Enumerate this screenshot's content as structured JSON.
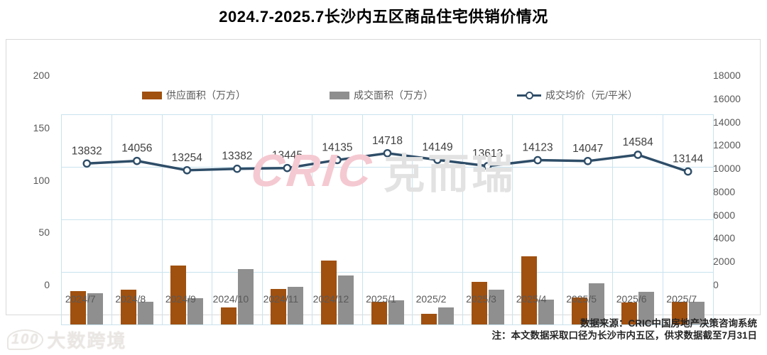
{
  "title": "2024.7-2025.7长沙内五区商品住宅供销价情况",
  "legend": [
    {
      "label": "供应面积（万方）",
      "color": "#a0500f",
      "type": "bar"
    },
    {
      "label": "成交面积（万方）",
      "color": "#8f8f8f",
      "type": "bar"
    },
    {
      "label": "成交均价（元/平米）",
      "color": "#2e4d68",
      "type": "line"
    }
  ],
  "watermark_center": {
    "brand": "CRIC",
    "name": "克而瑞"
  },
  "watermark_corner": {
    "logo": "100",
    "label": "大数跨境"
  },
  "footer": {
    "source": "数据来源：CRIC中国房地产决策咨询系统",
    "note": "注：本文数据采取口径为长沙市内五区，供求数据截至7月31日"
  },
  "colors": {
    "supply_bar": "#a0500f",
    "deal_bar": "#8f8f8f",
    "price_line": "#2e4d68",
    "grid": "#c9e3ee",
    "tick_text": "#595959",
    "value_label": "#404040"
  },
  "chart_data": {
    "type": "bar",
    "subtype": "combo-bar-line-dual-axis",
    "title": "2024.7-2025.7长沙内五区商品住宅供销价情况",
    "categories": [
      "2024/7",
      "2024/8",
      "2024/9",
      "2024/10",
      "2024/11",
      "2024/12",
      "2025/1",
      "2025/2",
      "2025/3",
      "2025/4",
      "2025/5",
      "2025/6",
      "2025/7"
    ],
    "series": [
      {
        "name": "供应面积（万方）",
        "type": "bar",
        "axis": "left",
        "color": "#a0500f",
        "values": [
          32,
          33,
          56,
          16,
          34,
          61,
          22,
          10,
          41,
          65,
          26,
          21,
          22
        ]
      },
      {
        "name": "成交面积（万方）",
        "type": "bar",
        "axis": "left",
        "color": "#8f8f8f",
        "values": [
          30,
          22,
          25,
          53,
          36,
          47,
          23,
          16,
          33,
          24,
          39,
          31,
          22
        ]
      },
      {
        "name": "成交均价（元/平米）",
        "type": "line",
        "axis": "right",
        "color": "#2e4d68",
        "values": [
          13832,
          14056,
          13254,
          13382,
          13445,
          14135,
          14718,
          14149,
          13613,
          14123,
          14047,
          14584,
          13144
        ],
        "data_labels": true
      }
    ],
    "left_axis": {
      "min": 0,
      "max": 200,
      "step": 50
    },
    "right_axis": {
      "min": 0,
      "max": 18000,
      "step": 2000
    },
    "grid": true,
    "legend_position": "top"
  }
}
